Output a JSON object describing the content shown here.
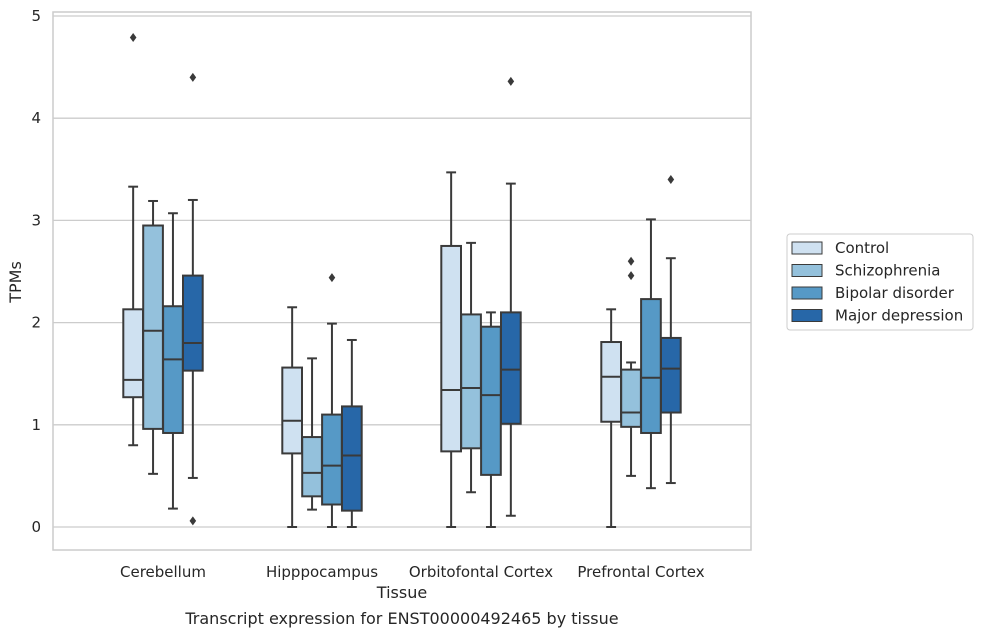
{
  "chart_data": {
    "type": "box",
    "title": "",
    "caption": "Transcript expression for ENST00000492465 by tissue",
    "xlabel": "Tissue",
    "ylabel": "TPMs",
    "ylim": [
      -0.22,
      5.05
    ],
    "yticks": [
      "0",
      "1",
      "2",
      "3",
      "4",
      "5"
    ],
    "grid": "horizontal",
    "legend_position": "right",
    "categories": [
      "Cerebellum",
      "Hipppocampus",
      "Orbitofontal Cortex",
      "Prefrontal Cortex"
    ],
    "series": [
      {
        "name": "Control",
        "color": "#cfe1f1",
        "boxes": [
          {
            "whislo": 0.8,
            "q1": 1.27,
            "med": 1.44,
            "q3": 2.13,
            "whishi": 3.33,
            "fliers": [
              4.79
            ]
          },
          {
            "whislo": 0.0,
            "q1": 0.72,
            "med": 1.04,
            "q3": 1.56,
            "whishi": 2.15,
            "fliers": []
          },
          {
            "whislo": 0.0,
            "q1": 0.74,
            "med": 1.34,
            "q3": 2.75,
            "whishi": 3.47,
            "fliers": []
          },
          {
            "whislo": 0.0,
            "q1": 1.03,
            "med": 1.47,
            "q3": 1.81,
            "whishi": 2.13,
            "fliers": []
          }
        ]
      },
      {
        "name": "Schizophrenia",
        "color": "#94c1dc",
        "boxes": [
          {
            "whislo": 0.52,
            "q1": 0.96,
            "med": 1.92,
            "q3": 2.95,
            "whishi": 3.19,
            "fliers": []
          },
          {
            "whislo": 0.17,
            "q1": 0.3,
            "med": 0.53,
            "q3": 0.88,
            "whishi": 1.65,
            "fliers": []
          },
          {
            "whislo": 0.34,
            "q1": 0.77,
            "med": 1.36,
            "q3": 2.08,
            "whishi": 2.78,
            "fliers": []
          },
          {
            "whislo": 0.5,
            "q1": 0.98,
            "med": 1.12,
            "q3": 1.54,
            "whishi": 1.61,
            "fliers": [
              2.46,
              2.6
            ]
          }
        ]
      },
      {
        "name": "Bipolar disorder",
        "color": "#5699c6",
        "boxes": [
          {
            "whislo": 0.18,
            "q1": 0.92,
            "med": 1.64,
            "q3": 2.16,
            "whishi": 3.07,
            "fliers": []
          },
          {
            "whislo": 0.0,
            "q1": 0.22,
            "med": 0.6,
            "q3": 1.1,
            "whishi": 1.99,
            "fliers": [
              2.44
            ]
          },
          {
            "whislo": 0.0,
            "q1": 0.51,
            "med": 1.29,
            "q3": 1.96,
            "whishi": 2.1,
            "fliers": []
          },
          {
            "whislo": 0.38,
            "q1": 0.92,
            "med": 1.46,
            "q3": 2.23,
            "whishi": 3.01,
            "fliers": []
          }
        ]
      },
      {
        "name": "Major depression",
        "color": "#2767a8",
        "boxes": [
          {
            "whislo": 0.48,
            "q1": 1.53,
            "med": 1.8,
            "q3": 2.46,
            "whishi": 3.2,
            "fliers": [
              0.06,
              4.4
            ]
          },
          {
            "whislo": 0.0,
            "q1": 0.16,
            "med": 0.7,
            "q3": 1.18,
            "whishi": 1.83,
            "fliers": []
          },
          {
            "whislo": 0.11,
            "q1": 1.01,
            "med": 1.54,
            "q3": 2.1,
            "whishi": 3.36,
            "fliers": [
              4.36
            ]
          },
          {
            "whislo": 0.43,
            "q1": 1.12,
            "med": 1.55,
            "q3": 1.85,
            "whishi": 2.63,
            "fliers": [
              3.4
            ]
          }
        ]
      }
    ]
  }
}
